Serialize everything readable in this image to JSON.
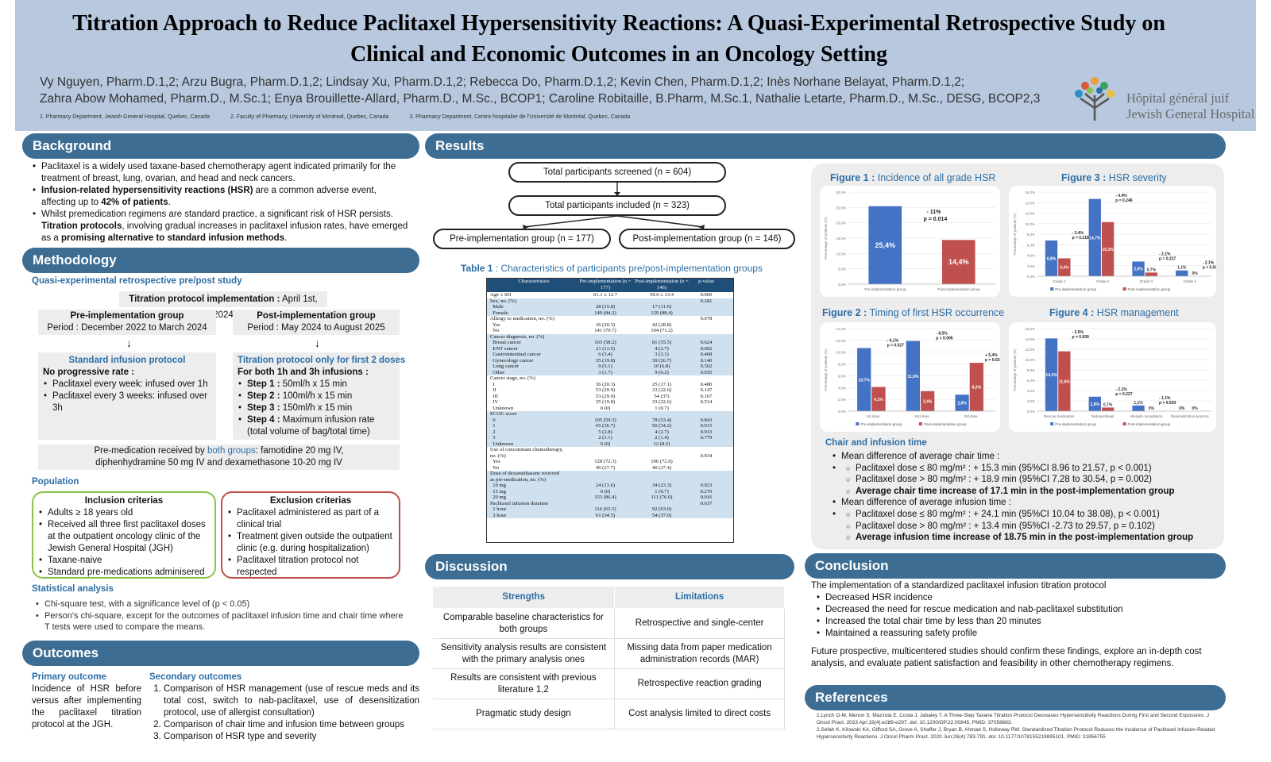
{
  "header": {
    "title_line1": "Titration Approach to Reduce Paclitaxel Hypersensitivity Reactions: A Quasi-Experimental Retrospective Study on",
    "title_line2": "Clinical and Economic Outcomes in an Oncology Setting",
    "authors_line1": "Vy Nguyen, Pharm.D.1,2; Arzu Bugra, Pharm.D.1,2; Lindsay Xu, Pharm.D.1,2; Rebecca Do, Pharm.D.1,2; Kevin Chen, Pharm.D.1,2; Inès Norhane Belayat, Pharm.D.1,2;",
    "authors_line2": "Zahra Abow Mohamed, Pharm.D., M.Sc.1; Enya Brouillette-Allard, Pharm.D., M.Sc., BCOP1; Caroline Robitaille, B.Pharm, M.Sc.1, Nathalie Letarte, Pharm.D., M.Sc., DESG, BCOP2,3",
    "affil1": "1. Pharmacy Department, Jewish General Hospital, Quebec, Canada",
    "affil2": "2. Faculty of Pharmacy, University of Montreal, Quebec, Canada",
    "affil3": "3. Pharmacy Department, Centre hospitalier de l'Université de Montréal, Quebec, Canada",
    "logo_line1": "Hôpital général juif",
    "logo_line2": "Jewish General Hospital"
  },
  "background": {
    "heading": "Background",
    "b1": "Paclitaxel is a widely used taxane-based chemotherapy agent indicated primarily for the treatment of breast, lung, ovarian, and head and neck cancers.",
    "b2_bold": "Infusion-related hypersensitivity reactions (HSR)",
    "b2_rest": " are a common adverse event, affecting up to ",
    "b2_pct": "42% of patients",
    "b3_a": "Whilst premedication regimens are standard practice, a significant risk of HSR persists. ",
    "b3_bold": "Titration protocols",
    "b3_b": ", involving gradual increases in paclitaxel infusion rates, have emerged as a ",
    "b3_bold2": "promising alternative to standard infusion methods"
  },
  "methodology": {
    "heading": "Methodology",
    "study": "Quasi-experimental retrospective pre/post study",
    "impl_label": "Titration protocol implementation :",
    "impl_date": " April 1st, 2024",
    "pre_title": "Pre-implementation group",
    "pre_period": "Period : December 2022 to March 2024",
    "post_title": "Post-implementation group",
    "post_period": "Period : May 2024 to August 2025",
    "std_title": "Standard infusion protocol",
    "std_sub": "No progressive rate :",
    "std_b1": "Paclitaxel every week: infused over 1h",
    "std_b2": "Paclitaxel every 3 weeks: infused over 3h",
    "tit_title": "Titration protocol only for first 2 doses",
    "tit_sub": "For both 1h and 3h infusions :",
    "s1": "Step 1 :",
    "s1v": " 50ml/h x 15 min",
    "s2": "Step 2 :",
    "s2v": " 100ml/h x 15 min",
    "s3": "Step 3 :",
    "s3v": " 150ml/h x 15 min",
    "s4": "Step 4 :",
    "s4v": " Maximum infusion rate (total volume of bag/total time)",
    "premed_a": "Pre-medication received by ",
    "premed_b": "both groups",
    "premed_c": ": famotidine 20 mg IV, diphenhydramine 50 mg IV and dexamethasone 10-20 mg IV",
    "population": "Population",
    "incl_title": "Inclusion criterias",
    "incl": [
      "Adults ≥ 18 years old",
      "Received all three first paclitaxel doses at the outpatient oncology clinic of the Jewish General Hospital (JGH)",
      "Taxane-naive",
      "Standard pre-medications adminisered"
    ],
    "excl_title": "Exclusion criterias",
    "excl": [
      "Paclitaxel administered as part of a clinical trial",
      "Treatment given outside the outpatient clinic (e.g. during hospitalization)",
      "Paclitaxel titration protocol not respected"
    ],
    "stat_title": "Statistical analysis",
    "stat": [
      "Chi-square test, with a significance level of (p < 0.05)",
      "Person's chi-square, except for the outcomes of paclitaxel infusion time and chair time where T tests were used to compare the means."
    ]
  },
  "outcomes": {
    "heading": "Outcomes",
    "primary_title": "Primary outcome",
    "primary": "Incidence of HSR before versus after implementing the paclitaxel titration protocol at the JGH.",
    "secondary_title": "Secondary outcomes",
    "secondary": [
      "Comparison of HSR management (use of rescue meds and its total cost, switch to nab-paclitaxel, use of desensitization protocol, use of allergist consultation)",
      "Comparison of chair time and infusion time between groups",
      "Comparison of HSR type and severity"
    ]
  },
  "results": {
    "heading": "Results",
    "flow1": "Total participants screened (n = 604)",
    "flow2": "Total participants included (n = 323)",
    "flow3": "Pre-implementation group (n = 177)",
    "flow4": "Post-implementation group (n = 146)",
    "table1_label": "Table 1",
    "table1_title": " : Characteristics of participants pre/post-implementation groups",
    "table1_head": [
      "Characteristics",
      "Pre-implementation (n = 177)",
      "Post-implementation (n = 146)",
      "p-value"
    ],
    "table1_rows": [
      [
        "Age ± SD",
        "61.1 ± 12.7",
        "59.6 ± 13.4",
        "0.060",
        0
      ],
      [
        "Sex, no. (%)",
        "",
        "",
        "0.281",
        1
      ],
      [
        "  Male",
        "28 (15.8)",
        "17 (11.6)",
        "",
        1
      ],
      [
        "  Female",
        "149 (84.2)",
        "129 (88.4)",
        "",
        1
      ],
      [
        "Allergy to medication, no. (%)",
        "",
        "",
        "0.078",
        0
      ],
      [
        "  Yes",
        "36 (20.3)",
        "42 (28.8)",
        "",
        0
      ],
      [
        "  No",
        "141 (79.7)",
        "104 (71.2)",
        "",
        0
      ],
      [
        "Cancer diagnosis, no. (%)",
        "",
        "",
        "",
        1
      ],
      [
        "  Breast cancer",
        "103 (58.2)",
        "81 (55.5)",
        "0.624",
        1
      ],
      [
        "  ENT cancer",
        "21 (11.9)",
        "4 (2.7)",
        "0.002",
        1
      ],
      [
        "  Gastrointestinal cancer",
        "6 (3.4)",
        "3 (2.1)",
        "0.468",
        1
      ],
      [
        "  Gynecology cancer",
        "35 (19.8)",
        "39 (26.7)",
        "0.140",
        1
      ],
      [
        "  Lung cancer",
        "9 (5.1)",
        "10 (6.8)",
        "0.502",
        1
      ],
      [
        "  Other",
        "3 (1.7)",
        "9 (6.2)",
        "0.035",
        1
      ],
      [
        "Cancer stage, no. (%)",
        "",
        "",
        "",
        0
      ],
      [
        "  I",
        "36 (20.3)",
        "25 (17.1)",
        "0.480",
        0
      ],
      [
        "  II",
        "53 (29.9)",
        "33 (22.6)",
        "0.147",
        0
      ],
      [
        "  III",
        "53 (29.9)",
        "54 (37)",
        "0.167",
        0
      ],
      [
        "  IV",
        "35 (19.8)",
        "33 (22.6)",
        "0.514",
        0
      ],
      [
        "  Unknown",
        "0 (0)",
        "1 (0.7)",
        "",
        0
      ],
      [
        "ECOG score",
        "",
        "",
        "",
        1
      ],
      [
        "  0",
        "105 (59.3)",
        "78 (53.4)",
        "0.843",
        1
      ],
      [
        "  1",
        "65 (36.7)",
        "50 (34.2)",
        "0.915",
        1
      ],
      [
        "  2",
        "5 (2.8)",
        "4 (2.7)",
        "0.933",
        1
      ],
      [
        "  3",
        "2 (1.1)",
        "2 (1.4)",
        "0.779",
        1
      ],
      [
        "  Unknown",
        "0 (0)",
        "12 (8.2)",
        "",
        1
      ],
      [
        "Use of concomitant chemotherapy,",
        "",
        "",
        "",
        0
      ],
      [
        "no. (%)",
        "",
        "",
        "0.934",
        0
      ],
      [
        "  Yes",
        "128 (72.3)",
        "106 (72.6)",
        "",
        0
      ],
      [
        "  No",
        "49 (27.7)",
        "40 (27.4)",
        "",
        0
      ],
      [
        "Dose of dexamethasone received",
        "",
        "",
        "",
        1
      ],
      [
        "as pre-medication, no. (%)",
        "",
        "",
        "",
        1
      ],
      [
        "  10 mg",
        "24 (13.6)",
        "34 (23.3)",
        "0.023",
        1
      ],
      [
        "  15 mg",
        "0 (0)",
        "1 (0.7)",
        "0.270",
        1
      ],
      [
        "  20 mg",
        "153 (86.4)",
        "111 (76.0)",
        "0.016",
        1
      ],
      [
        "Paclitaxel infusion duration",
        "",
        "",
        "0.637",
        1
      ],
      [
        "  1 hour",
        "116 (65.5)",
        "92 (63.0)",
        "",
        1
      ],
      [
        "  3 hour",
        "61 (34.5)",
        "54 (37.0)",
        "",
        1
      ]
    ]
  },
  "figures": {
    "fig1_label": "Figure 1 :",
    "fig1_title": " Incidence of all grade HSR",
    "fig2_label": "Figure 2 :",
    "fig2_title": " Timing of first HSR occurrence",
    "fig3_label": "Figure 3 :",
    "fig3_title": " HSR severity",
    "fig4_label": "Figure 4 :",
    "fig4_title": " HSR management",
    "pre_color": "#4472c4",
    "post_color": "#c0504d",
    "legend_pre": "Pre-implementation group",
    "legend_post": "Post-implementation group"
  },
  "chart_data": [
    {
      "type": "bar",
      "title": "Incidence of all grade HSR",
      "ylabel": "Percentage of patients (%)",
      "categories": [
        "Pre-implementation group",
        "Post-implementation group"
      ],
      "series": [
        {
          "name": "",
          "values": [
            25.4,
            14.4
          ]
        }
      ],
      "labels": [
        "25,4%",
        "14,4%"
      ],
      "ylim": [
        0,
        30
      ],
      "yticks": [
        "0,0%",
        "5,0%",
        "10,0%",
        "15,0%",
        "20,0%",
        "25,0%",
        "30,0%"
      ],
      "annotations": [
        "- 11%",
        "p = 0.014"
      ]
    },
    {
      "type": "bar",
      "title": "Timing of first HSR occurrence",
      "ylabel": "Percentage of patients (%)",
      "categories": [
        "1st dose",
        "2nd dose",
        "3rd dose"
      ],
      "series": [
        {
          "name": "Pre-implementation group",
          "values": [
            10.7,
            11.9,
            2.8
          ]
        },
        {
          "name": "Post-implementation group",
          "values": [
            4.1,
            3.4,
            8.2
          ]
        }
      ],
      "labels_pre": [
        "10,7%",
        "11,9%",
        "2,8%"
      ],
      "labels_post": [
        "4,1%",
        "3,4%",
        "8,2%"
      ],
      "ylim": [
        0,
        14
      ],
      "yticks": [
        "0,0%",
        "2,0%",
        "4,0%",
        "6,0%",
        "8,0%",
        "10,0%",
        "12,0%",
        "14,0%"
      ],
      "annotations": [
        [
          "- 6,1%",
          "p = 0.027"
        ],
        [
          "- 8,5%",
          "p = 0.006"
        ],
        [
          "+ 5,4%",
          "p = 0.031"
        ]
      ]
    },
    {
      "type": "bar",
      "title": "HSR severity",
      "ylabel": "Percentage of patients (%)",
      "categories": [
        "Grade 1",
        "Grade 2",
        "Grade 3",
        "Grade 4"
      ],
      "series": [
        {
          "name": "Pre-implementation group",
          "values": [
            6.8,
            14.7,
            2.8,
            1.1
          ]
        },
        {
          "name": "Post-implementation group",
          "values": [
            3.4,
            10.3,
            0.7,
            0
          ]
        }
      ],
      "labels_pre": [
        "6,8%",
        "14,7%",
        "2,8%",
        "1,1%"
      ],
      "labels_post": [
        "3,4%",
        "10,3%",
        "0,7%",
        "0%"
      ],
      "ylim": [
        0,
        16
      ],
      "yticks": [
        "0,0%",
        "2,0%",
        "4,0%",
        "6,0%",
        "8,0%",
        "10,0%",
        "12,0%",
        "14,0%",
        "16,0%"
      ],
      "annotations": [
        [
          "- 3.4%",
          "p = 0.216"
        ],
        [
          "- 4.4%",
          "p = 0.246"
        ],
        [
          "- 2.1%",
          "p = 0.227"
        ],
        [
          "- 2.1%",
          "p = 0.503"
        ]
      ]
    },
    {
      "type": "bar",
      "title": "HSR management",
      "ylabel": "Percentage of patients (%)",
      "categories": [
        "Rescue medication",
        "Nab-paclitaxel",
        "Allergist consultation",
        "Desensitization protocol"
      ],
      "series": [
        {
          "name": "Pre-implementation group",
          "values": [
            14.1,
            2.8,
            1.1,
            0
          ]
        },
        {
          "name": "Post-implementation group",
          "values": [
            11.6,
            0.7,
            0,
            0
          ]
        }
      ],
      "labels_pre": [
        "14,1%",
        "2,8%",
        "1,1%",
        "0%"
      ],
      "labels_post": [
        "11,6%",
        "0,7%",
        "0%",
        "0%"
      ],
      "ylim": [
        0,
        16
      ],
      "yticks": [
        "0,0%",
        "2,0%",
        "4,0%",
        "6,0%",
        "8,0%",
        "10,0%",
        "12,0%",
        "14,0%",
        "16,0%"
      ],
      "annotations": [
        [
          "- 2.5%",
          "p = 0.509"
        ],
        [
          "- 2.1%",
          "p = 0.227"
        ],
        [
          "- 1.1%",
          "p = 0.503"
        ],
        [
          "",
          ""
        ]
      ]
    }
  ],
  "chair": {
    "title": "Chair and infusion time",
    "m1": "Mean difference of average chair time :",
    "m1a": "Paclitaxel dose ≤ 80 mg/m² : + 15.3 min (95%CI 8.96 to 21.57, p < 0.001)",
    "m1b": "Paclitaxel dose > 80 mg/m² : + 18.9 min (95%CI 7.28 to 30.54, p = 0.002)",
    "m1c": "Average chair time increase of 17.1 min in the post-implementation group",
    "m2": "Mean difference of average infusion time :",
    "m2a": "Paclitaxel dose ≤ 80 mg/m² : + 24.1 min (95%CI 10.04 to 38.08), p < 0.001)",
    "m2b": "Paclitaxel dose > 80 mg/m² : + 13.4 min (95%CI -2.73 to 29.57, p = 0.102)",
    "m2c": "Average infusion time increase of 18.75 min in the post-implementation group"
  },
  "discussion": {
    "heading": "Discussion",
    "col1": "Strengths",
    "col2": "Limitations",
    "rows": [
      [
        "Comparable baseline characteristics for both groups",
        "Retrospective and single-center"
      ],
      [
        "Sensitivity analysis results are consistent with the primary analysis ones",
        "Missing data from paper medication administration records (MAR)"
      ],
      [
        "Results are consistent with previous literature 1,2",
        "Retrospective reaction grading"
      ],
      [
        "Pragmatic study design",
        "Cost analysis limited to direct costs"
      ]
    ]
  },
  "conclusion": {
    "heading": "Conclusion",
    "intro": "The implementation of a standardized paclitaxel infusion titration protocol",
    "items": [
      "Decreased HSR incidence",
      "Decreased the need for rescue medication and nab-paclitaxel substitution",
      "Increased the total chair time by less than 20 minutes",
      "Maintained a reassuring safety profile"
    ],
    "future": "Future prospective, multicentered studies should confirm these findings, explore an in-depth cost analysis, and evaluate patient satisfaction and feasibility in other chemotherapy regimens."
  },
  "references": {
    "heading": "References",
    "r1": "1.Lynch O-M, Menon S, Mazzola E, Costa J, Jabaley T. A Three-Step Taxane Titration Protocol Decreases Hypersensitivity Reactions During First and Second Exposures. J Oncol Pract. 2023 Apr;19(4):e289-e297. doi: 10.1200/OP.22.00845. PMID: 37058683.",
    "r2": "2.Sefah K, Kilowski KA, Gifford SA, Grove A, Shaffer J, Bryan B, Ahmad S, Holloway RW. Standardized Titration Protocol Reduces the Incidence of Paclitaxel Infusion-Related Hypersensitivity Reactions. J Oncol Pharm Pract. 2020 Jun;26(4):783-791. doi: 10.1177/1078155219895101. PMID: 31856755"
  }
}
